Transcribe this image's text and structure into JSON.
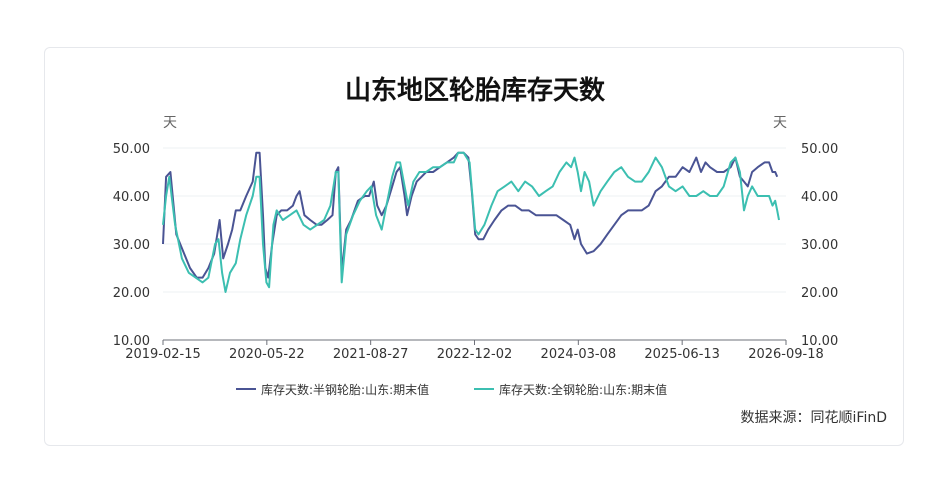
{
  "chart_data": {
    "type": "line",
    "title": "山东地区轮胎库存天数",
    "y_unit_left": "天",
    "y_unit_right": "天",
    "ylim": [
      10,
      50
    ],
    "yticks": [
      "10.00",
      "20.00",
      "30.00",
      "40.00",
      "50.00"
    ],
    "xlim": [
      "2019-02-15",
      "2026-09-18"
    ],
    "xticks": [
      "2019-02-15",
      "2020-05-22",
      "2021-08-27",
      "2022-12-02",
      "2024-03-08",
      "2025-06-13",
      "2026-09-18"
    ],
    "grid": true,
    "legend_position": "bottom",
    "source": "数据来源：同花顺iFinD",
    "colors": [
      "#4a5494",
      "#3cbfb1"
    ],
    "series": [
      {
        "name": "库存天数:半钢轮胎:山东:期末值",
        "points": [
          [
            "2019-02-15",
            30
          ],
          [
            "2019-03-01",
            44
          ],
          [
            "2019-03-20",
            45
          ],
          [
            "2019-04-15",
            32
          ],
          [
            "2019-05-20",
            28
          ],
          [
            "2019-06-15",
            25
          ],
          [
            "2019-07-15",
            23
          ],
          [
            "2019-08-10",
            23
          ],
          [
            "2019-09-05",
            25
          ],
          [
            "2019-10-01",
            28
          ],
          [
            "2019-10-25",
            35
          ],
          [
            "2019-11-10",
            27
          ],
          [
            "2019-12-01",
            30
          ],
          [
            "2019-12-20",
            33
          ],
          [
            "2020-01-05",
            37
          ],
          [
            "2020-01-25",
            37
          ],
          [
            "2020-02-20",
            40
          ],
          [
            "2020-03-20",
            43
          ],
          [
            "2020-04-05",
            49
          ],
          [
            "2020-04-20",
            49
          ],
          [
            "2020-05-05",
            36
          ],
          [
            "2020-05-15",
            25
          ],
          [
            "2020-05-28",
            23
          ],
          [
            "2020-06-15",
            30
          ],
          [
            "2020-07-05",
            36
          ],
          [
            "2020-07-25",
            37
          ],
          [
            "2020-08-20",
            37
          ],
          [
            "2020-09-15",
            38
          ],
          [
            "2020-10-01",
            40
          ],
          [
            "2020-10-15",
            41
          ],
          [
            "2020-11-05",
            36
          ],
          [
            "2020-12-01",
            35
          ],
          [
            "2020-12-30",
            34
          ],
          [
            "2021-01-20",
            34
          ],
          [
            "2021-02-15",
            35
          ],
          [
            "2021-03-10",
            36
          ],
          [
            "2021-03-25",
            45
          ],
          [
            "2021-04-05",
            46
          ],
          [
            "2021-04-20",
            24
          ],
          [
            "2021-05-10",
            33
          ],
          [
            "2021-06-01",
            35
          ],
          [
            "2021-07-01",
            39
          ],
          [
            "2021-08-01",
            40
          ],
          [
            "2021-08-20",
            40
          ],
          [
            "2021-09-10",
            43
          ],
          [
            "2021-09-25",
            38
          ],
          [
            "2021-10-15",
            36
          ],
          [
            "2021-11-05",
            38
          ],
          [
            "2021-12-01",
            42
          ],
          [
            "2021-12-20",
            45
          ],
          [
            "2022-01-05",
            46
          ],
          [
            "2022-01-25",
            40
          ],
          [
            "2022-02-05",
            36
          ],
          [
            "2022-02-25",
            40
          ],
          [
            "2022-03-20",
            43
          ],
          [
            "2022-04-10",
            44
          ],
          [
            "2022-05-01",
            45
          ],
          [
            "2022-06-01",
            45
          ],
          [
            "2022-07-01",
            46
          ],
          [
            "2022-08-01",
            47
          ],
          [
            "2022-09-01",
            48
          ],
          [
            "2022-09-20",
            49
          ],
          [
            "2022-10-15",
            49
          ],
          [
            "2022-11-05",
            48
          ],
          [
            "2022-11-20",
            41
          ],
          [
            "2022-12-05",
            32
          ],
          [
            "2022-12-20",
            31
          ],
          [
            "2023-01-10",
            31
          ],
          [
            "2023-02-01",
            33
          ],
          [
            "2023-03-01",
            35
          ],
          [
            "2023-04-01",
            37
          ],
          [
            "2023-05-01",
            38
          ],
          [
            "2023-06-01",
            38
          ],
          [
            "2023-07-01",
            37
          ],
          [
            "2023-08-01",
            37
          ],
          [
            "2023-09-01",
            36
          ],
          [
            "2023-10-01",
            36
          ],
          [
            "2023-11-01",
            36
          ],
          [
            "2023-12-01",
            36
          ],
          [
            "2024-01-01",
            35
          ],
          [
            "2024-02-01",
            34
          ],
          [
            "2024-02-20",
            31
          ],
          [
            "2024-03-05",
            33
          ],
          [
            "2024-03-20",
            30
          ],
          [
            "2024-04-15",
            28
          ],
          [
            "2024-05-15",
            28.5
          ],
          [
            "2024-06-15",
            30
          ],
          [
            "2024-07-15",
            32
          ],
          [
            "2024-08-15",
            34
          ],
          [
            "2024-09-15",
            36
          ],
          [
            "2024-10-15",
            37
          ],
          [
            "2024-11-15",
            37
          ],
          [
            "2024-12-15",
            37
          ],
          [
            "2025-01-15",
            38
          ],
          [
            "2025-02-15",
            41
          ],
          [
            "2025-03-15",
            42
          ],
          [
            "2025-04-15",
            44
          ],
          [
            "2025-05-15",
            44
          ],
          [
            "2025-06-15",
            46
          ],
          [
            "2025-07-15",
            45
          ],
          [
            "2025-08-15",
            48
          ],
          [
            "2025-09-05",
            45
          ],
          [
            "2025-09-25",
            47
          ],
          [
            "2025-10-15",
            46
          ],
          [
            "2025-11-15",
            45
          ],
          [
            "2025-12-15",
            45
          ],
          [
            "2026-01-15",
            46
          ],
          [
            "2026-02-05",
            48
          ],
          [
            "2026-02-25",
            44
          ],
          [
            "2026-03-15",
            43
          ],
          [
            "2026-04-01",
            42
          ],
          [
            "2026-04-20",
            45
          ],
          [
            "2026-05-15",
            46
          ],
          [
            "2026-06-15",
            47
          ],
          [
            "2026-07-05",
            47
          ],
          [
            "2026-07-20",
            45
          ],
          [
            "2026-08-01",
            45
          ],
          [
            "2026-08-10",
            44
          ]
        ]
      },
      {
        "name": "库存天数:全钢轮胎:山东:期末值",
        "points": [
          [
            "2019-02-15",
            34
          ],
          [
            "2019-03-01",
            40
          ],
          [
            "2019-03-15",
            44
          ],
          [
            "2019-04-10",
            34
          ],
          [
            "2019-05-10",
            27
          ],
          [
            "2019-06-10",
            24
          ],
          [
            "2019-07-10",
            23
          ],
          [
            "2019-08-10",
            22
          ],
          [
            "2019-09-05",
            23
          ],
          [
            "2019-10-05",
            30
          ],
          [
            "2019-10-20",
            31
          ],
          [
            "2019-11-05",
            24
          ],
          [
            "2019-11-20",
            20
          ],
          [
            "2019-12-10",
            24
          ],
          [
            "2020-01-05",
            26
          ],
          [
            "2020-01-25",
            31
          ],
          [
            "2020-02-20",
            36
          ],
          [
            "2020-03-20",
            40
          ],
          [
            "2020-04-05",
            44
          ],
          [
            "2020-04-20",
            44
          ],
          [
            "2020-05-05",
            30
          ],
          [
            "2020-05-20",
            22
          ],
          [
            "2020-06-01",
            21
          ],
          [
            "2020-06-20",
            34
          ],
          [
            "2020-07-05",
            37
          ],
          [
            "2020-08-01",
            35
          ],
          [
            "2020-09-01",
            36
          ],
          [
            "2020-10-01",
            37
          ],
          [
            "2020-11-01",
            34
          ],
          [
            "2020-12-01",
            33
          ],
          [
            "2021-01-01",
            34
          ],
          [
            "2021-02-01",
            35
          ],
          [
            "2021-03-01",
            38
          ],
          [
            "2021-03-25",
            45
          ],
          [
            "2021-04-05",
            45
          ],
          [
            "2021-04-20",
            22
          ],
          [
            "2021-05-10",
            32
          ],
          [
            "2021-06-10",
            36
          ],
          [
            "2021-07-10",
            39
          ],
          [
            "2021-08-10",
            41
          ],
          [
            "2021-08-30",
            42
          ],
          [
            "2021-09-20",
            36
          ],
          [
            "2021-10-15",
            33
          ],
          [
            "2021-11-05",
            38
          ],
          [
            "2021-12-01",
            44
          ],
          [
            "2021-12-20",
            47
          ],
          [
            "2022-01-05",
            47
          ],
          [
            "2022-01-25",
            42
          ],
          [
            "2022-02-10",
            38
          ],
          [
            "2022-03-05",
            43
          ],
          [
            "2022-04-01",
            45
          ],
          [
            "2022-05-01",
            45
          ],
          [
            "2022-06-01",
            46
          ],
          [
            "2022-07-01",
            46
          ],
          [
            "2022-08-01",
            47
          ],
          [
            "2022-09-01",
            47
          ],
          [
            "2022-09-20",
            49
          ],
          [
            "2022-10-15",
            49
          ],
          [
            "2022-11-10",
            47
          ],
          [
            "2022-12-05",
            33
          ],
          [
            "2022-12-20",
            32
          ],
          [
            "2023-01-15",
            34
          ],
          [
            "2023-02-15",
            38
          ],
          [
            "2023-03-15",
            41
          ],
          [
            "2023-04-15",
            42
          ],
          [
            "2023-05-15",
            43
          ],
          [
            "2023-06-15",
            41
          ],
          [
            "2023-07-15",
            43
          ],
          [
            "2023-08-15",
            42
          ],
          [
            "2023-09-15",
            40
          ],
          [
            "2023-10-15",
            41
          ],
          [
            "2023-11-15",
            42
          ],
          [
            "2023-12-15",
            45
          ],
          [
            "2024-01-15",
            47
          ],
          [
            "2024-02-05",
            46
          ],
          [
            "2024-02-20",
            48
          ],
          [
            "2024-03-05",
            45
          ],
          [
            "2024-03-20",
            41
          ],
          [
            "2024-04-05",
            45
          ],
          [
            "2024-04-25",
            43
          ],
          [
            "2024-05-15",
            38
          ],
          [
            "2024-06-15",
            41
          ],
          [
            "2024-07-15",
            43
          ],
          [
            "2024-08-15",
            45
          ],
          [
            "2024-09-15",
            46
          ],
          [
            "2024-10-15",
            44
          ],
          [
            "2024-11-15",
            43
          ],
          [
            "2024-12-15",
            43
          ],
          [
            "2025-01-15",
            45
          ],
          [
            "2025-02-15",
            48
          ],
          [
            "2025-03-15",
            46
          ],
          [
            "2025-04-15",
            42
          ],
          [
            "2025-05-15",
            41
          ],
          [
            "2025-06-15",
            42
          ],
          [
            "2025-07-15",
            40
          ],
          [
            "2025-08-15",
            40
          ],
          [
            "2025-09-15",
            41
          ],
          [
            "2025-10-15",
            40
          ],
          [
            "2025-11-15",
            40
          ],
          [
            "2025-12-15",
            42
          ],
          [
            "2026-01-15",
            47
          ],
          [
            "2026-02-05",
            48
          ],
          [
            "2026-02-25",
            45
          ],
          [
            "2026-03-15",
            37
          ],
          [
            "2026-04-01",
            40
          ],
          [
            "2026-04-20",
            42
          ],
          [
            "2026-05-15",
            40
          ],
          [
            "2026-06-15",
            40
          ],
          [
            "2026-07-05",
            40
          ],
          [
            "2026-07-20",
            38
          ],
          [
            "2026-08-01",
            39
          ],
          [
            "2026-08-10",
            37
          ],
          [
            "2026-08-18",
            35
          ]
        ]
      }
    ]
  }
}
